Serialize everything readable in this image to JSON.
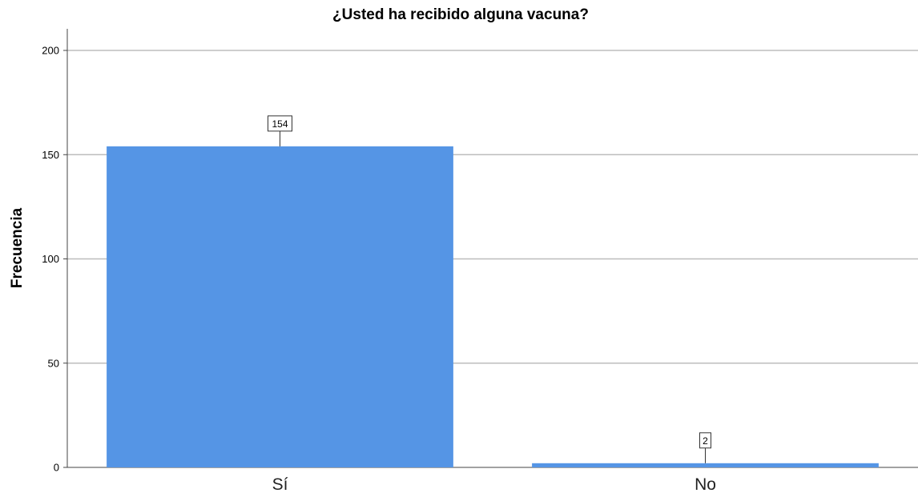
{
  "chart_data": {
    "type": "bar",
    "title": "¿Usted ha recibido alguna vacuna?",
    "xlabel": "",
    "ylabel": "Frecuencia",
    "categories": [
      "Sí",
      "No"
    ],
    "values": [
      154,
      2
    ],
    "data_labels": [
      "154",
      "2"
    ],
    "yticks": [
      "0",
      "50",
      "100",
      "150",
      "200"
    ],
    "ylim": [
      0,
      210
    ],
    "grid": true,
    "bar_color": "#5595e5",
    "grid_color": "#bdbdbd"
  }
}
